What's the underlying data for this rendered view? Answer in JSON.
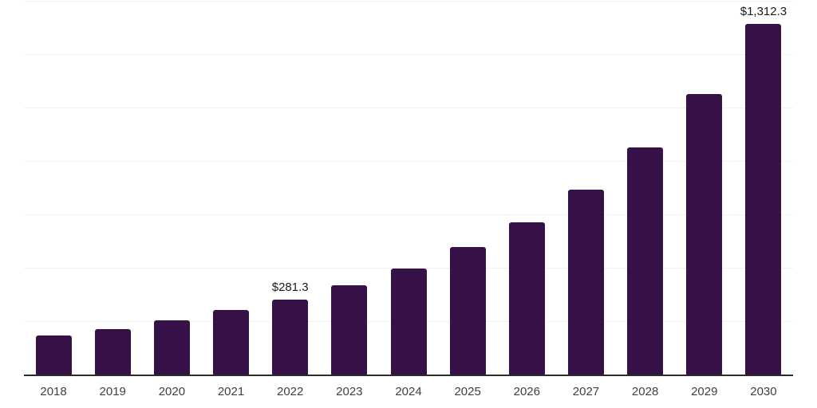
{
  "chart_data": {
    "type": "bar",
    "title": "",
    "xlabel": "",
    "ylabel": "",
    "categories": [
      "2018",
      "2019",
      "2020",
      "2021",
      "2022",
      "2023",
      "2024",
      "2025",
      "2026",
      "2027",
      "2028",
      "2029",
      "2030"
    ],
    "values": [
      147,
      171,
      202,
      241,
      281.3,
      334,
      397,
      477,
      570,
      692,
      852,
      1051,
      1312.3
    ],
    "value_labels": {
      "2022": "$281.3",
      "2030": "$1,312.3"
    },
    "ylim": [
      0,
      1400
    ],
    "gridline_step": 200,
    "grid": true,
    "legend_position": "none",
    "y_axis_tick_labels_visible": false,
    "colors": {
      "bar": "#351148",
      "axis_line": "#2b2b2b",
      "gridline": "#f1f1f1",
      "tick_label": "#3f3f3f",
      "value_label": "#1a1a1a",
      "background": "#ffffff"
    }
  }
}
